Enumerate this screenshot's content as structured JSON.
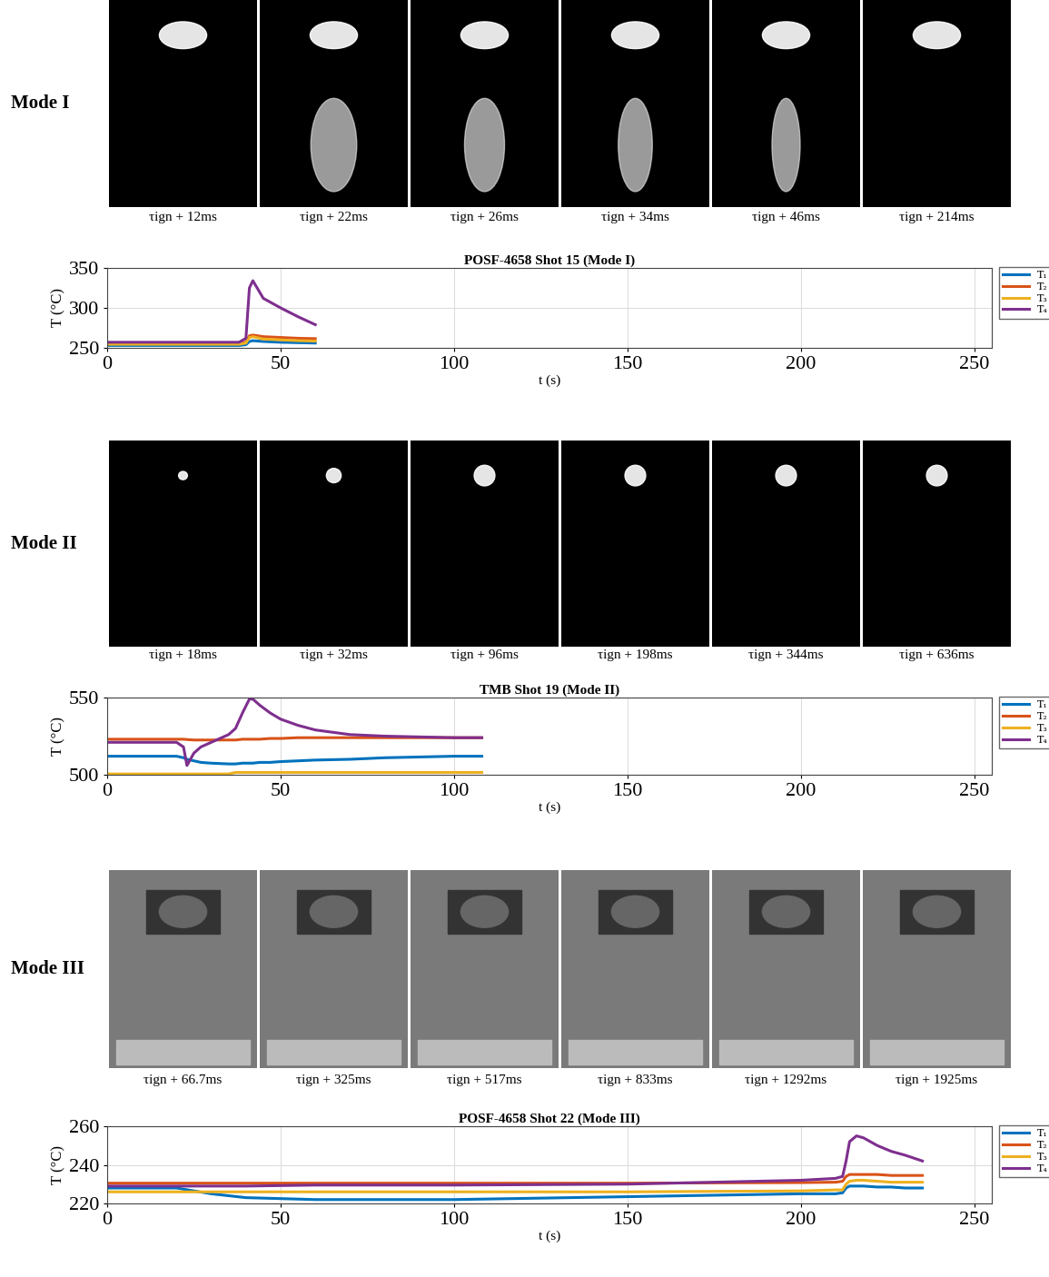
{
  "image_strips": [
    {
      "label": "Mode I",
      "frames": [
        "τign + 12ms",
        "τign + 22ms",
        "τign + 26ms",
        "τign + 34ms",
        "τign + 46ms",
        "τign + 214ms"
      ]
    },
    {
      "label": "Mode II",
      "frames": [
        "τign + 18ms",
        "τign + 32ms",
        "τign + 96ms",
        "τign + 198ms",
        "τign + 344ms",
        "τign + 636ms"
      ]
    },
    {
      "label": "Mode III",
      "frames": [
        "τign + 66.7ms",
        "τign + 325ms",
        "τign + 517ms",
        "τign + 833ms",
        "τign + 1292ms",
        "τign + 1925ms"
      ]
    }
  ],
  "chart_data": [
    {
      "type": "line",
      "title": "POSF-4658 Shot 15 (Mode I)",
      "x_label": "t (s)",
      "y_label": "T (°C)",
      "xlim": [
        0,
        255
      ],
      "xticks": [
        0,
        50,
        100,
        150,
        200,
        250
      ],
      "ylim": [
        250,
        350
      ],
      "yticks": [
        250,
        300,
        350
      ],
      "grid": true,
      "legend": "upper right",
      "x": [
        0,
        10,
        20,
        30,
        38,
        40,
        41,
        42,
        45,
        50,
        55,
        60
      ],
      "series": [
        {
          "name": "T₁",
          "color": "#0072BD",
          "values": [
            253,
            253,
            253,
            253,
            253,
            254,
            258,
            259,
            258,
            257,
            256.5,
            256
          ]
        },
        {
          "name": "T₂",
          "color": "#D95319",
          "values": [
            256,
            256,
            256,
            256,
            256,
            257,
            265,
            266,
            264,
            263,
            262,
            261.5
          ]
        },
        {
          "name": "T₃",
          "color": "#EDB120",
          "values": [
            254.5,
            254.5,
            254.5,
            254.5,
            254.5,
            256,
            263,
            264,
            261,
            260,
            259,
            258.5
          ]
        },
        {
          "name": "T₄",
          "color": "#7E2F8E",
          "values": [
            257,
            257,
            257,
            257,
            257,
            262,
            325,
            334,
            312,
            300,
            289,
            279
          ]
        }
      ]
    },
    {
      "type": "line",
      "title": "TMB Shot 19 (Mode II)",
      "x_label": "t (s)",
      "y_label": "T (°C)",
      "xlim": [
        0,
        255
      ],
      "xticks": [
        0,
        50,
        100,
        150,
        200,
        250
      ],
      "ylim": [
        500,
        550
      ],
      "yticks": [
        500,
        550
      ],
      "grid": true,
      "legend": "upper right",
      "x": [
        0,
        10,
        20,
        22,
        23,
        25,
        27,
        30,
        35,
        37,
        39,
        41,
        42,
        44,
        47,
        50,
        55,
        60,
        70,
        80,
        90,
        100,
        108
      ],
      "series": [
        {
          "name": "T₁",
          "color": "#0072BD",
          "values": [
            512,
            512,
            512,
            511,
            510,
            509,
            508,
            507.5,
            507,
            507,
            507.5,
            507.5,
            507.5,
            508,
            508,
            508.5,
            509,
            509.5,
            510,
            511,
            511.5,
            512,
            512
          ]
        },
        {
          "name": "T₂",
          "color": "#D95319",
          "values": [
            523,
            523,
            523,
            523,
            522.8,
            522.5,
            522.5,
            522.5,
            522.5,
            522.5,
            523,
            523,
            523,
            523,
            523.5,
            523.5,
            524,
            524,
            524,
            524,
            524,
            524,
            524
          ]
        },
        {
          "name": "T₃",
          "color": "#EDB120",
          "values": [
            500.5,
            500.5,
            500.5,
            500.5,
            500.5,
            500.5,
            500.5,
            500.5,
            500.5,
            501.5,
            501.5,
            501.5,
            501.5,
            501.5,
            501.5,
            501.5,
            501.5,
            501.5,
            501.5,
            501.5,
            501.5,
            501.5,
            501.5
          ]
        },
        {
          "name": "T₄",
          "color": "#7E2F8E",
          "values": [
            521,
            521,
            521,
            518,
            506,
            514,
            518,
            521,
            526,
            530,
            540,
            549,
            549,
            545,
            540,
            536,
            532,
            529,
            526,
            525,
            524.5,
            524,
            524
          ]
        }
      ]
    },
    {
      "type": "line",
      "title": "POSF-4658 Shot 22 (Mode III)",
      "x_label": "t (s)",
      "y_label": "T (°C)",
      "xlim": [
        0,
        255
      ],
      "xticks": [
        0,
        50,
        100,
        150,
        200,
        250
      ],
      "ylim": [
        220,
        260
      ],
      "yticks": [
        220,
        240,
        260
      ],
      "grid": true,
      "legend": "upper right",
      "x": [
        0,
        20,
        30,
        40,
        60,
        100,
        150,
        200,
        210,
        212,
        213,
        214,
        216,
        218,
        222,
        226,
        230,
        235
      ],
      "series": [
        {
          "name": "T₁",
          "color": "#0072BD",
          "values": [
            228,
            228,
            225,
            223,
            222,
            222,
            223.5,
            225,
            225,
            225.5,
            228,
            229,
            229,
            229,
            228.5,
            228.5,
            228,
            228
          ]
        },
        {
          "name": "T₂",
          "color": "#D95319",
          "values": [
            230.5,
            230.5,
            230.5,
            230.5,
            230.5,
            230.5,
            230.5,
            230.8,
            231,
            231.5,
            234,
            235,
            235,
            235,
            235,
            234.5,
            234.5,
            234.5
          ]
        },
        {
          "name": "T₃",
          "color": "#EDB120",
          "values": [
            226,
            226,
            226,
            226,
            226,
            226,
            226,
            226.5,
            227,
            227,
            230,
            231.5,
            232,
            232,
            231.5,
            231,
            231,
            231
          ]
        },
        {
          "name": "T₄",
          "color": "#7E2F8E",
          "values": [
            229,
            229,
            229,
            229,
            229.5,
            229.5,
            230,
            232,
            233,
            234,
            242,
            252,
            255,
            254,
            250,
            247,
            245,
            242
          ]
        }
      ]
    }
  ]
}
